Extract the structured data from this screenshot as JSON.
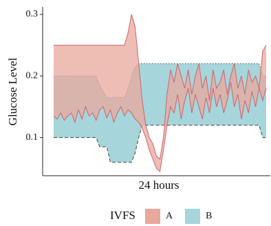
{
  "chart_data": {
    "type": "ribbon",
    "y_label": "Glucose Level",
    "x_label": "24 hours",
    "legend_title": "IVFS",
    "legend": "bottom",
    "ylim": [
      0.038,
      0.31
    ],
    "yticks": [
      0.1,
      0.2,
      0.3
    ],
    "series": [
      {
        "name": "B",
        "color": "#a6d5db",
        "line_color": "#444444",
        "upper": [
          0.2,
          0.2,
          0.2,
          0.2,
          0.2,
          0.2,
          0.2,
          0.2,
          0.2,
          0.2,
          0.2,
          0.2,
          0.2,
          0.185,
          0.175,
          0.165,
          0.165,
          0.165,
          0.165,
          0.165,
          0.165,
          0.18,
          0.2,
          0.215,
          0.22,
          0.22,
          0.22,
          0.22,
          0.22,
          0.22,
          0.22,
          0.22,
          0.22,
          0.22,
          0.22,
          0.22,
          0.22,
          0.22,
          0.22,
          0.22,
          0.22,
          0.22,
          0.22,
          0.22,
          0.22,
          0.22,
          0.22,
          0.22,
          0.22,
          0.22,
          0.22,
          0.22,
          0.22,
          0.22,
          0.22,
          0.22,
          0.22,
          0.22,
          0.22,
          0.2,
          0.2
        ],
        "lower": [
          0.1,
          0.1,
          0.1,
          0.1,
          0.1,
          0.1,
          0.1,
          0.1,
          0.1,
          0.1,
          0.1,
          0.1,
          0.1,
          0.085,
          0.085,
          0.085,
          0.06,
          0.06,
          0.06,
          0.06,
          0.06,
          0.06,
          0.06,
          0.075,
          0.1,
          0.12,
          0.12,
          0.12,
          0.12,
          0.12,
          0.12,
          0.12,
          0.12,
          0.12,
          0.12,
          0.12,
          0.12,
          0.12,
          0.12,
          0.12,
          0.12,
          0.12,
          0.12,
          0.12,
          0.12,
          0.12,
          0.12,
          0.12,
          0.12,
          0.12,
          0.12,
          0.12,
          0.12,
          0.12,
          0.12,
          0.12,
          0.12,
          0.12,
          0.12,
          0.1,
          0.1
        ]
      },
      {
        "name": "A",
        "color": "#e8a89c",
        "line_color": "#d0626a",
        "upper": [
          0.25,
          0.25,
          0.25,
          0.25,
          0.25,
          0.25,
          0.25,
          0.25,
          0.25,
          0.25,
          0.25,
          0.25,
          0.25,
          0.25,
          0.25,
          0.25,
          0.25,
          0.25,
          0.25,
          0.25,
          0.25,
          0.27,
          0.3,
          0.28,
          0.22,
          0.16,
          0.12,
          0.1,
          0.09,
          0.07,
          0.065,
          0.1,
          0.17,
          0.21,
          0.19,
          0.22,
          0.2,
          0.18,
          0.21,
          0.17,
          0.2,
          0.22,
          0.18,
          0.2,
          0.16,
          0.21,
          0.18,
          0.19,
          0.21,
          0.17,
          0.2,
          0.22,
          0.18,
          0.2,
          0.17,
          0.21,
          0.19,
          0.2,
          0.18,
          0.24,
          0.25
        ],
        "lower": [
          0.135,
          0.13,
          0.14,
          0.128,
          0.135,
          0.14,
          0.125,
          0.145,
          0.13,
          0.15,
          0.135,
          0.14,
          0.128,
          0.145,
          0.15,
          0.132,
          0.145,
          0.125,
          0.14,
          0.15,
          0.135,
          0.145,
          0.14,
          0.13,
          0.125,
          0.115,
          0.1,
          0.08,
          0.065,
          0.05,
          0.045,
          0.08,
          0.12,
          0.15,
          0.14,
          0.17,
          0.13,
          0.16,
          0.18,
          0.14,
          0.17,
          0.15,
          0.13,
          0.165,
          0.14,
          0.18,
          0.15,
          0.17,
          0.14,
          0.16,
          0.19,
          0.15,
          0.17,
          0.13,
          0.16,
          0.14,
          0.175,
          0.15,
          0.18,
          0.16,
          0.18
        ]
      }
    ]
  }
}
